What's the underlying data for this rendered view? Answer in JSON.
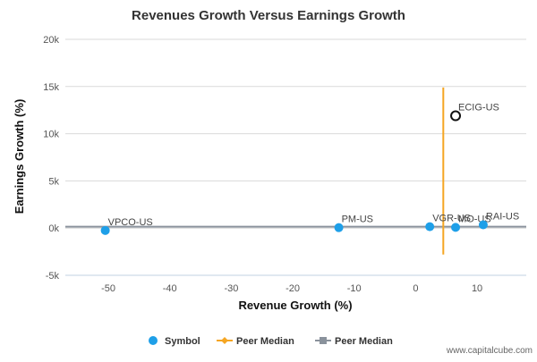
{
  "chart_data": {
    "type": "scatter",
    "title": "Revenues Growth Versus Earnings Growth",
    "xlabel": "Revenue Growth (%)",
    "ylabel": "Earnings Growth (%)",
    "xlim": [
      -57,
      18
    ],
    "ylim": [
      -5000,
      20000
    ],
    "x_ticks": [
      -50,
      -40,
      -30,
      -20,
      -10,
      0,
      10
    ],
    "x_tick_labels": [
      "-50",
      "-40",
      "-30",
      "-20",
      "-10",
      "0",
      "10"
    ],
    "y_ticks": [
      -5000,
      0,
      5000,
      10000,
      15000,
      20000
    ],
    "y_tick_labels": [
      "-5k",
      "0k",
      "5k",
      "10k",
      "15k",
      "20k"
    ],
    "grid": "horizontal",
    "legend_position": "bottom",
    "legend": [
      {
        "label": "Symbol",
        "marker": "circle"
      },
      {
        "label": "Peer Median",
        "marker": "line-diamond"
      },
      {
        "label": "Peer Median",
        "marker": "line-square"
      }
    ],
    "points": [
      {
        "label": "VPCO-US",
        "x": -50.5,
        "y": -250,
        "style": "filled"
      },
      {
        "label": "PM-US",
        "x": -12.5,
        "y": 50,
        "style": "filled"
      },
      {
        "label": "VGR-US",
        "x": 2.3,
        "y": 150,
        "style": "filled"
      },
      {
        "label": "MO-US",
        "x": 6.5,
        "y": 80,
        "style": "filled"
      },
      {
        "label": "RAI-US",
        "x": 11.0,
        "y": 350,
        "style": "filled"
      },
      {
        "label": "ECIG-US",
        "x": 6.5,
        "y": 11900,
        "style": "hollow"
      }
    ],
    "peer_median_x": 4.5,
    "peer_median_x_range": [
      -2800,
      14900
    ],
    "peer_median_y": 150,
    "colors": {
      "symbol": "#1e9fe8",
      "peer_median_revenue": "#f5a623",
      "peer_median_earnings": "#8a929c",
      "grid": "#d9d9d9",
      "hollow_point": "#111111"
    }
  },
  "watermark": "www.capitalcube.com"
}
